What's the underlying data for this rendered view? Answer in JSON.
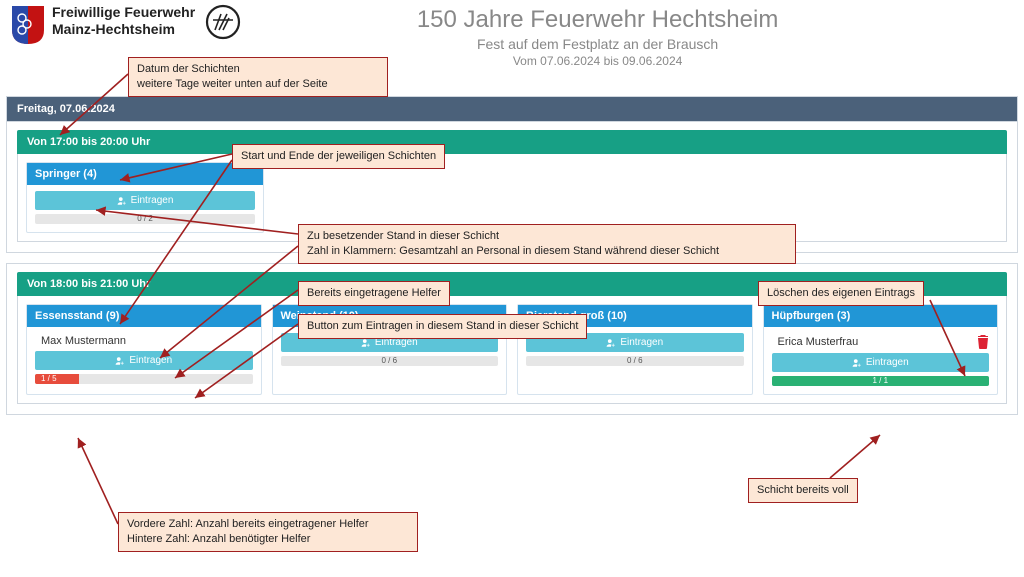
{
  "org": {
    "line1": "Freiwillige Feuerwehr",
    "line2": "Mainz-Hechtsheim"
  },
  "page": {
    "title": "150 Jahre Feuerwehr Hechtsheim",
    "subtitle": "Fest auf dem Festplatz an der Brausch",
    "dates": "Vom 07.06.2024 bis 09.06.2024"
  },
  "colors": {
    "day_bar": "#4b617a",
    "shift_bar": "#17a085",
    "card_header": "#2196d6",
    "enroll_btn": "#5cc4d8",
    "progress_red": "#e74c3c",
    "progress_green": "#2ab174",
    "callout_bg": "#fde7d6",
    "callout_border": "#a02020"
  },
  "day": {
    "label": "Freitag, 07.06.2024"
  },
  "shift1": {
    "time": "Von 17:00 bis 20:00 Uhr",
    "card": {
      "title": "Springer (4)",
      "enroll_label": "Eintragen",
      "progress_text": "0 / 2",
      "progress_pct": 0
    }
  },
  "shift2": {
    "time": "Von 18:00 bis 21:00 Uhr",
    "cards": [
      {
        "title": "Essensstand (9)",
        "helpers": [
          "Max Mustermann"
        ],
        "enroll_label": "Eintragen",
        "progress_text": "1 / 5",
        "progress_pct": 20,
        "progress_color": "#e74c3c"
      },
      {
        "title": "Weinstand (10)",
        "helpers": [],
        "enroll_label": "Eintragen",
        "progress_text": "0 / 6",
        "progress_pct": 0
      },
      {
        "title": "Bierstand groß (10)",
        "helpers": [],
        "enroll_label": "Eintragen",
        "progress_text": "0 / 6",
        "progress_pct": 0
      },
      {
        "title": "Hüpfburgen (3)",
        "helpers": [
          "Erica Musterfrau"
        ],
        "enroll_label": "Eintragen",
        "progress_text": "1 / 1",
        "progress_pct": 100,
        "progress_color": "#2ab174",
        "deletable": true
      }
    ]
  },
  "callouts": {
    "c_date": "Datum der Schichten\nweitere Tage weiter unten auf der Seite",
    "c_time": "Start und Ende der jeweiligen Schichten",
    "c_stand": "Zu besetzender Stand in dieser Schicht\nZahl in Klammern: Gesamtzahl an Personal in diesem Stand während dieser Schicht",
    "c_helper": "Bereits eingetragene Helfer",
    "c_button": "Button zum Eintragen in diesem Stand in dieser Schicht",
    "c_delete": "Löschen des eigenen Eintrags",
    "c_full": "Schicht bereits voll",
    "c_counts": "Vordere Zahl: Anzahl bereits eingetragener Helfer\nHintere Zahl:  Anzahl benötigter Helfer"
  }
}
